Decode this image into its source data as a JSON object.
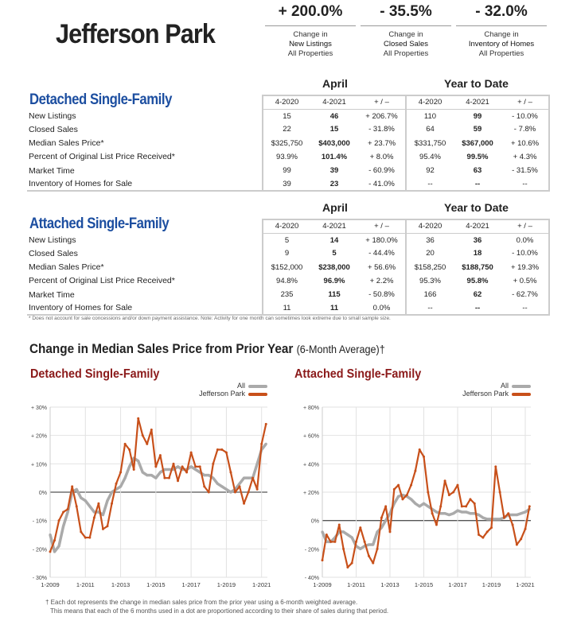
{
  "title": "Jefferson Park",
  "stats": [
    {
      "value": "+ 200.0%",
      "l1": "Change in",
      "l2": "New Listings",
      "l3": "All Properties"
    },
    {
      "value": "- 35.5%",
      "l1": "Change in",
      "l2": "Closed Sales",
      "l3": "All Properties"
    },
    {
      "value": "- 32.0%",
      "l1": "Change in",
      "l2": "Inventory of Homes",
      "l3": "All Properties"
    }
  ],
  "period_labels": {
    "month": "April",
    "ytd": "Year to Date"
  },
  "col_headers": [
    "4-2020",
    "4-2021",
    "+ / –",
    "4-2020",
    "4-2021",
    "+ / –"
  ],
  "tables": [
    {
      "group": "Detached Single-Family",
      "rows": [
        [
          "New Listings",
          "15",
          "46",
          "+ 206.7%",
          "110",
          "99",
          "- 10.0%"
        ],
        [
          "Closed Sales",
          "22",
          "15",
          "- 31.8%",
          "64",
          "59",
          "- 7.8%"
        ],
        [
          "Median Sales Price*",
          "$325,750",
          "$403,000",
          "+ 23.7%",
          "$331,750",
          "$367,000",
          "+ 10.6%"
        ],
        [
          "Percent of Original List Price Received*",
          "93.9%",
          "101.4%",
          "+ 8.0%",
          "95.4%",
          "99.5%",
          "+ 4.3%"
        ],
        [
          "Market Time",
          "99",
          "39",
          "- 60.9%",
          "92",
          "63",
          "- 31.5%"
        ],
        [
          "Inventory of Homes for Sale",
          "39",
          "23",
          "- 41.0%",
          "--",
          "--",
          "--"
        ]
      ]
    },
    {
      "group": "Attached Single-Family",
      "rows": [
        [
          "New Listings",
          "5",
          "14",
          "+ 180.0%",
          "36",
          "36",
          "0.0%"
        ],
        [
          "Closed Sales",
          "9",
          "5",
          "- 44.4%",
          "20",
          "18",
          "- 10.0%"
        ],
        [
          "Median Sales Price*",
          "$152,000",
          "$238,000",
          "+ 56.6%",
          "$158,250",
          "$188,750",
          "+ 19.3%"
        ],
        [
          "Percent of Original List Price Received*",
          "94.8%",
          "96.9%",
          "+ 2.2%",
          "95.3%",
          "95.8%",
          "+ 0.5%"
        ],
        [
          "Market Time",
          "235",
          "115",
          "- 50.8%",
          "166",
          "62",
          "- 62.7%"
        ],
        [
          "Inventory of Homes for Sale",
          "11",
          "11",
          "0.0%",
          "--",
          "--",
          "--"
        ]
      ]
    }
  ],
  "note": "* Does not account for sale concessions and/or down payment assistance. Note: Activity for one month can sometimes look extreme due to small sample size.",
  "chart_section": {
    "title": "Change in Median Sales Price from Prior Year",
    "subtitle": "(6-Month Average)†"
  },
  "footnote": [
    "† Each dot represents the change in median sales price from the prior year using a 6-month weighted average.",
    "This means that each of the 6 months used in a dot are proportioned according to their share of sales during that period."
  ],
  "colors": {
    "all": "#aaaaaa",
    "jefferson_park": "#c8501a",
    "group_blue": "#1c4ea0",
    "chart_title": "#8b1a1a"
  },
  "chart_data": [
    {
      "type": "line",
      "title": "Detached Single-Family",
      "ylim": [
        -30,
        30
      ],
      "yticks": [
        "- 30%",
        "- 20%",
        "- 10%",
        "0%",
        "+ 10%",
        "+ 20%",
        "+ 30%"
      ],
      "ytick_values": [
        -30,
        -20,
        -10,
        0,
        10,
        20,
        30
      ],
      "xticks": [
        "1-2009",
        "1-2011",
        "1-2013",
        "1-2015",
        "1-2017",
        "1-2019",
        "1-2021"
      ],
      "grid": true,
      "legend": "top-right",
      "x": [
        "2009-01",
        "2009-04",
        "2009-07",
        "2009-10",
        "2010-01",
        "2010-04",
        "2010-07",
        "2010-10",
        "2011-01",
        "2011-04",
        "2011-07",
        "2011-10",
        "2012-01",
        "2012-04",
        "2012-07",
        "2012-10",
        "2013-01",
        "2013-04",
        "2013-07",
        "2013-10",
        "2014-01",
        "2014-04",
        "2014-07",
        "2014-10",
        "2015-01",
        "2015-04",
        "2015-07",
        "2015-10",
        "2016-01",
        "2016-04",
        "2016-07",
        "2016-10",
        "2017-01",
        "2017-04",
        "2017-07",
        "2017-10",
        "2018-01",
        "2018-04",
        "2018-07",
        "2018-10",
        "2019-01",
        "2019-04",
        "2019-07",
        "2019-10",
        "2020-01",
        "2020-04",
        "2020-07",
        "2020-10",
        "2021-01",
        "2021-04"
      ],
      "series": [
        {
          "name": "All",
          "values": [
            -15,
            -21,
            -19,
            -12,
            -7,
            0,
            1,
            -2,
            -3,
            -5,
            -7,
            -7,
            -8,
            -3,
            0,
            1,
            2,
            5,
            9,
            12,
            11,
            7,
            6,
            6,
            5,
            7,
            8,
            8,
            8,
            9,
            8,
            8,
            9,
            8,
            7,
            6,
            6,
            5,
            3,
            2,
            1,
            0,
            1,
            3,
            5,
            5,
            5,
            10,
            15,
            17
          ]
        },
        {
          "name": "Jefferson Park",
          "values": [
            -21,
            -17,
            -10,
            -7,
            -6,
            2,
            -5,
            -14,
            -16,
            -16,
            -9,
            -4,
            -13,
            -12,
            -4,
            3,
            7,
            17,
            15,
            8,
            26,
            20,
            17,
            22,
            9,
            13,
            5,
            5,
            10,
            4,
            9,
            7,
            14,
            9,
            9,
            2,
            0,
            10,
            15,
            15,
            14,
            7,
            0,
            2,
            -4,
            0,
            5,
            1,
            17,
            24
          ]
        }
      ]
    },
    {
      "type": "line",
      "title": "Attached Single-Family",
      "ylim": [
        -40,
        80
      ],
      "yticks": [
        "- 40%",
        "- 20%",
        "0%",
        "+ 20%",
        "+ 40%",
        "+ 60%",
        "+ 80%"
      ],
      "ytick_values": [
        -40,
        -20,
        0,
        20,
        40,
        60,
        80
      ],
      "xticks": [
        "1-2009",
        "1-2011",
        "1-2013",
        "1-2015",
        "1-2017",
        "1-2019",
        "1-2021"
      ],
      "grid": true,
      "legend": "top-right",
      "x": [
        "2009-01",
        "2009-04",
        "2009-07",
        "2009-10",
        "2010-01",
        "2010-04",
        "2010-07",
        "2010-10",
        "2011-01",
        "2011-04",
        "2011-07",
        "2011-10",
        "2012-01",
        "2012-04",
        "2012-07",
        "2012-10",
        "2013-01",
        "2013-04",
        "2013-07",
        "2013-10",
        "2014-01",
        "2014-04",
        "2014-07",
        "2014-10",
        "2015-01",
        "2015-04",
        "2015-07",
        "2015-10",
        "2016-01",
        "2016-04",
        "2016-07",
        "2016-10",
        "2017-01",
        "2017-04",
        "2017-07",
        "2017-10",
        "2018-01",
        "2018-04",
        "2018-07",
        "2018-10",
        "2019-01",
        "2019-04",
        "2019-07",
        "2019-10",
        "2020-01",
        "2020-04",
        "2020-07",
        "2020-10",
        "2021-01",
        "2021-04"
      ],
      "series": [
        {
          "name": "All",
          "values": [
            -8,
            -15,
            -15,
            -12,
            -8,
            -8,
            -10,
            -12,
            -18,
            -20,
            -18,
            -17,
            -17,
            -8,
            -5,
            0,
            5,
            12,
            17,
            18,
            17,
            15,
            12,
            10,
            12,
            10,
            8,
            6,
            5,
            5,
            4,
            5,
            7,
            6,
            6,
            5,
            5,
            4,
            2,
            1,
            1,
            1,
            1,
            2,
            4,
            4,
            4,
            5,
            6,
            8
          ]
        },
        {
          "name": "Jefferson Park",
          "values": [
            -28,
            -10,
            -15,
            -15,
            -3,
            -20,
            -33,
            -30,
            -15,
            -5,
            -15,
            -25,
            -30,
            -20,
            2,
            10,
            -8,
            22,
            25,
            15,
            18,
            25,
            35,
            50,
            45,
            20,
            5,
            -3,
            10,
            28,
            18,
            20,
            25,
            10,
            10,
            15,
            12,
            -10,
            -12,
            -8,
            -5,
            38,
            20,
            2,
            5,
            -3,
            -17,
            -13,
            -6,
            10
          ]
        }
      ]
    }
  ]
}
